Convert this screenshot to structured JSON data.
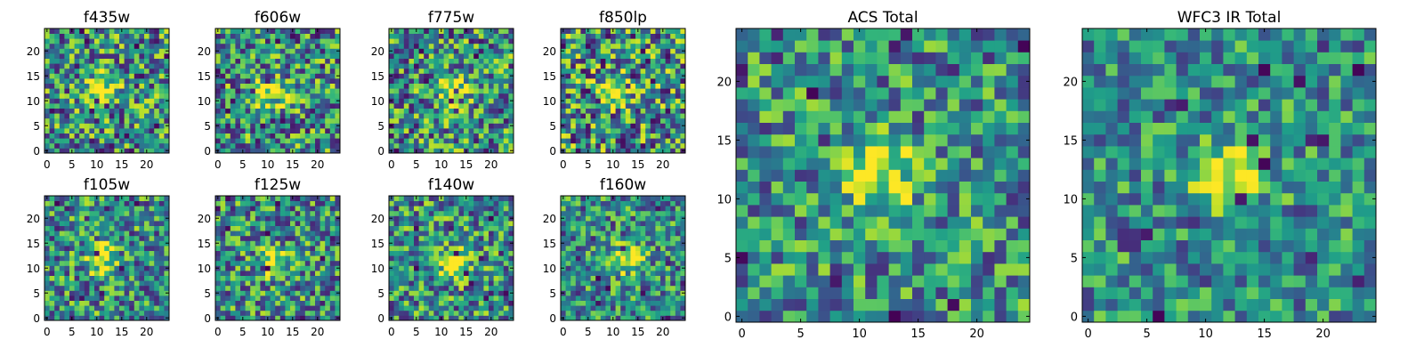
{
  "figure": {
    "background": "#ffffff",
    "colormap": "viridis"
  },
  "chart_data": [
    {
      "type": "heatmap",
      "title": "f435w",
      "xticks": [
        "0",
        "5",
        "10",
        "15",
        "20"
      ],
      "yticks": [
        "0",
        "5",
        "10",
        "15",
        "20"
      ],
      "xlim": [
        -0.5,
        24.5
      ],
      "ylim": [
        -0.5,
        24.5
      ],
      "grid_size": [
        25,
        25
      ],
      "peak": [
        11,
        12
      ],
      "noise": 0.55,
      "seed": 11
    },
    {
      "type": "heatmap",
      "title": "f606w",
      "xticks": [
        "0",
        "5",
        "10",
        "15",
        "20"
      ],
      "yticks": [
        "0",
        "5",
        "10",
        "15",
        "20"
      ],
      "xlim": [
        -0.5,
        24.5
      ],
      "ylim": [
        -0.5,
        24.5
      ],
      "grid_size": [
        25,
        25
      ],
      "peak": [
        11,
        12
      ],
      "noise": 0.55,
      "seed": 23
    },
    {
      "type": "heatmap",
      "title": "f775w",
      "xticks": [
        "0",
        "5",
        "10",
        "15",
        "20"
      ],
      "yticks": [
        "0",
        "5",
        "10",
        "15",
        "20"
      ],
      "xlim": [
        -0.5,
        24.5
      ],
      "ylim": [
        -0.5,
        24.5
      ],
      "grid_size": [
        25,
        25
      ],
      "peak": [
        12,
        12
      ],
      "noise": 0.55,
      "seed": 37
    },
    {
      "type": "heatmap",
      "title": "f850lp",
      "xticks": [
        "0",
        "5",
        "10",
        "15",
        "20"
      ],
      "yticks": [
        "0",
        "5",
        "10",
        "15",
        "20"
      ],
      "xlim": [
        -0.5,
        24.5
      ],
      "ylim": [
        -0.5,
        24.5
      ],
      "grid_size": [
        25,
        25
      ],
      "peak": [
        11,
        12
      ],
      "noise": 0.6,
      "seed": 41
    },
    {
      "type": "heatmap",
      "title": "f105w",
      "xticks": [
        "0",
        "5",
        "10",
        "15",
        "20"
      ],
      "yticks": [
        "0",
        "5",
        "10",
        "15",
        "20"
      ],
      "xlim": [
        -0.5,
        24.5
      ],
      "ylim": [
        -0.5,
        24.5
      ],
      "grid_size": [
        25,
        25
      ],
      "peak": [
        11,
        12
      ],
      "noise": 0.5,
      "seed": 53
    },
    {
      "type": "heatmap",
      "title": "f125w",
      "xticks": [
        "0",
        "5",
        "10",
        "15",
        "20"
      ],
      "yticks": [
        "0",
        "5",
        "10",
        "15",
        "20"
      ],
      "xlim": [
        -0.5,
        24.5
      ],
      "ylim": [
        -0.5,
        24.5
      ],
      "grid_size": [
        25,
        25
      ],
      "peak": [
        11,
        11
      ],
      "noise": 0.5,
      "seed": 67
    },
    {
      "type": "heatmap",
      "title": "f140w",
      "xticks": [
        "0",
        "5",
        "10",
        "15",
        "20"
      ],
      "yticks": [
        "0",
        "5",
        "10",
        "15",
        "20"
      ],
      "xlim": [
        -0.5,
        24.5
      ],
      "ylim": [
        -0.5,
        24.5
      ],
      "grid_size": [
        25,
        25
      ],
      "peak": [
        12,
        11
      ],
      "noise": 0.5,
      "seed": 79
    },
    {
      "type": "heatmap",
      "title": "f160w",
      "xticks": [
        "0",
        "5",
        "10",
        "15",
        "20"
      ],
      "yticks": [
        "0",
        "5",
        "10",
        "15",
        "20"
      ],
      "xlim": [
        -0.5,
        24.5
      ],
      "ylim": [
        -0.5,
        24.5
      ],
      "grid_size": [
        25,
        25
      ],
      "peak": [
        13,
        12
      ],
      "noise": 0.45,
      "seed": 83
    },
    {
      "type": "heatmap",
      "title": "ACS Total",
      "xticks": [
        "0",
        "5",
        "10",
        "15",
        "20"
      ],
      "yticks": [
        "0",
        "5",
        "10",
        "15",
        "20"
      ],
      "xlim": [
        -0.5,
        24.5
      ],
      "ylim": [
        -0.5,
        24.5
      ],
      "grid_size": [
        25,
        25
      ],
      "peak": [
        12,
        12
      ],
      "noise": 0.45,
      "seed": 97
    },
    {
      "type": "heatmap",
      "title": "WFC3 IR Total",
      "xticks": [
        "0",
        "5",
        "10",
        "15",
        "20"
      ],
      "yticks": [
        "0",
        "5",
        "10",
        "15",
        "20"
      ],
      "xlim": [
        -0.5,
        24.5
      ],
      "ylim": [
        -0.5,
        24.5
      ],
      "grid_size": [
        25,
        25
      ],
      "peak": [
        12,
        12
      ],
      "noise": 0.4,
      "seed": 101
    }
  ]
}
